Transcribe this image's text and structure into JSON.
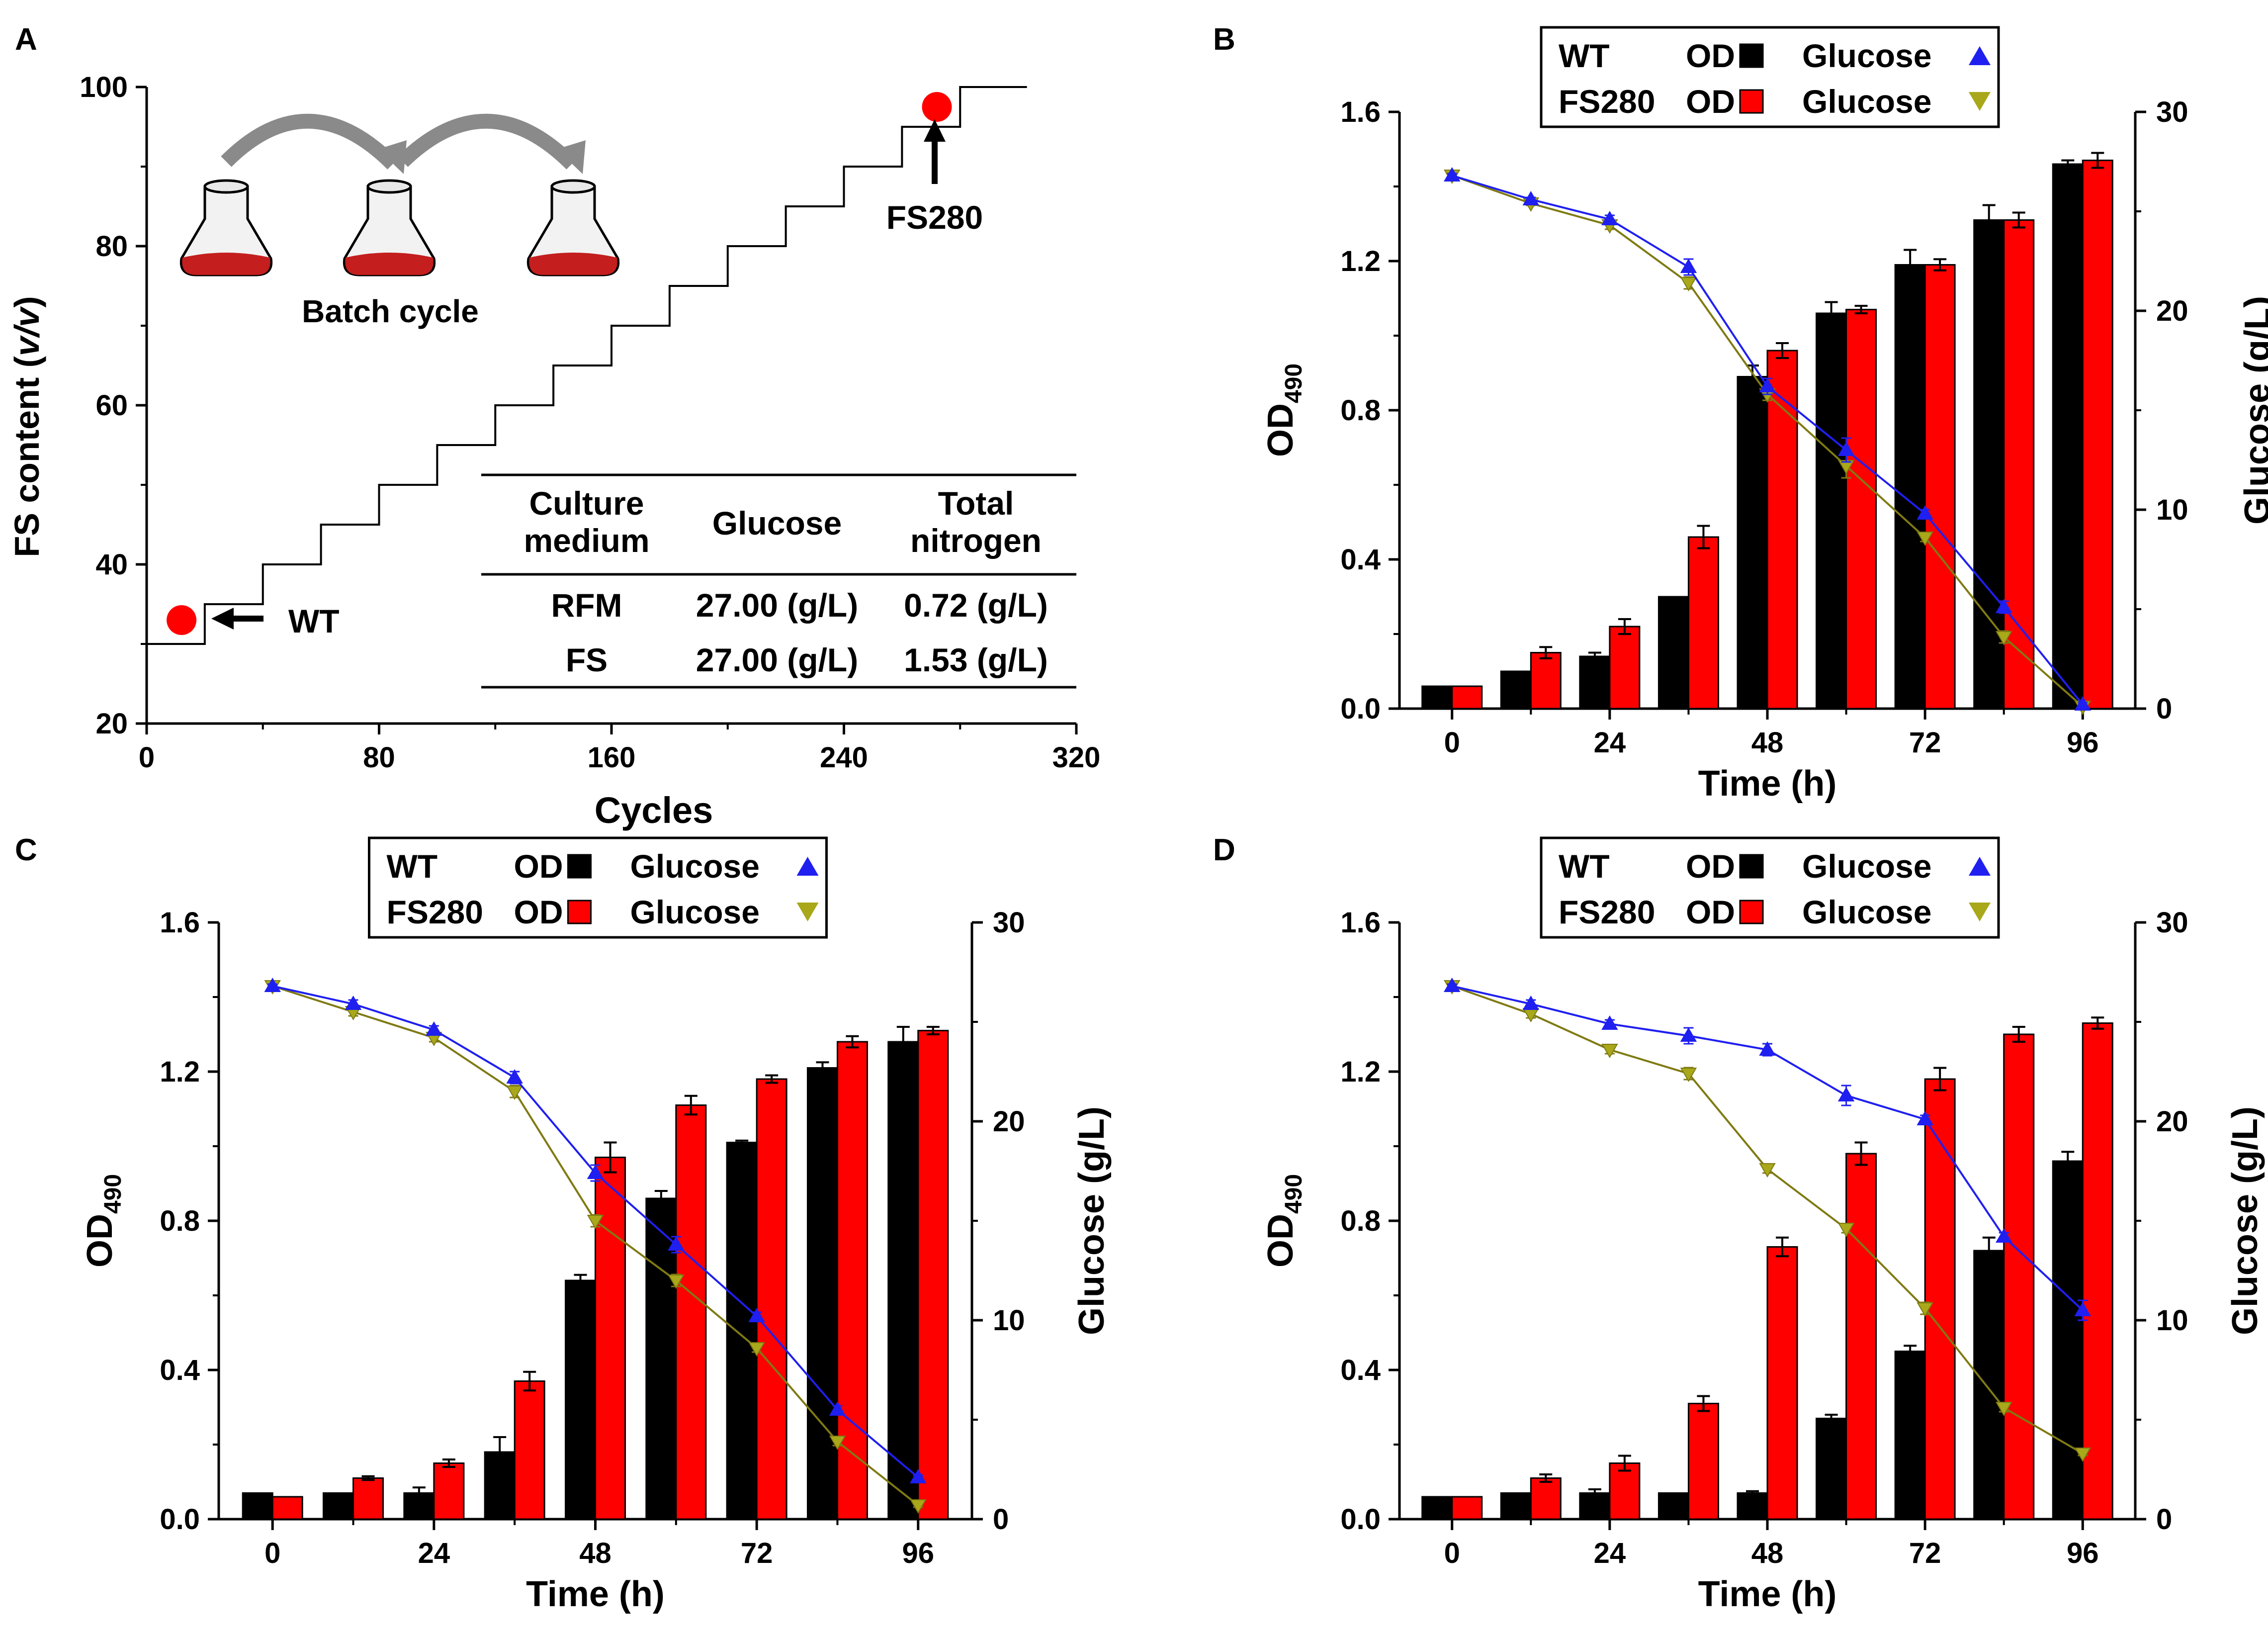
{
  "colors": {
    "axis": "#000000",
    "wt_bar": "#000000",
    "fs_bar": "#ff0000",
    "wt_glucose": "#1f1ff0",
    "fs_glucose": "#7f7a12",
    "fs_glucose_marker": "#a8a81a",
    "dot": "#ff0000",
    "flask_liquid": "#c41e1e",
    "arrow_gray": "#8a8a8a"
  },
  "panels": {
    "A": {
      "letter": "A",
      "ylabel_main": "FS content (",
      "ylabel_italic": "v/v",
      "ylabel_close": ")",
      "xlabel": "Cycles",
      "batch_label": "Batch cycle",
      "wt_label": "WT",
      "fs280_label": "FS280",
      "table": {
        "headers": [
          [
            "Culture",
            "medium"
          ],
          [
            "Glucose"
          ],
          [
            "Total",
            "nitrogen"
          ]
        ],
        "rows": [
          [
            "RFM",
            "27.00 (g/L)",
            "0.72 (g/L)"
          ],
          [
            "FS",
            "27.00 (g/L)",
            "1.53 (g/L)"
          ]
        ]
      }
    },
    "B": {
      "letter": "B"
    },
    "C": {
      "letter": "C"
    },
    "D": {
      "letter": "D"
    }
  },
  "legend": {
    "row1_strain": "WT",
    "row2_strain": "FS280",
    "od_label": "OD",
    "glucose_label": "Glucose"
  },
  "common_labels": {
    "od_main": "OD",
    "od_sub": "490",
    "glucose_axis": "Glucose (g/L)",
    "time_axis": "Time (h)"
  },
  "chart_data": [
    {
      "panel": "A",
      "type": "line",
      "title": "",
      "xlabel": "Cycles",
      "ylabel": "FS content (v/v)",
      "xlim": [
        0,
        320
      ],
      "ylim": [
        20,
        100
      ],
      "xticks": [
        0,
        80,
        160,
        240,
        320
      ],
      "yticks": [
        20,
        40,
        60,
        80,
        100
      ],
      "series": [
        {
          "name": "FS content staircase",
          "x": [
            0,
            20,
            20,
            40,
            40,
            60,
            60,
            80,
            80,
            100,
            100,
            120,
            120,
            140,
            140,
            160,
            160,
            180,
            180,
            200,
            200,
            220,
            220,
            240,
            240,
            260,
            260,
            280,
            280,
            303
          ],
          "y": [
            30,
            30,
            35,
            35,
            40,
            40,
            45,
            45,
            50,
            50,
            55,
            55,
            60,
            60,
            65,
            65,
            70,
            70,
            75,
            75,
            80,
            80,
            85,
            85,
            90,
            90,
            95,
            95,
            100,
            100
          ]
        }
      ],
      "markers": [
        {
          "label": "WT",
          "x": 12,
          "y": 33
        },
        {
          "label": "FS280",
          "x": 272,
          "y": 97.5
        }
      ]
    },
    {
      "panel": "B",
      "type": "bar",
      "xlabel": "Time (h)",
      "ylabel": "OD490",
      "ylabel_right": "Glucose (g/L)",
      "x": [
        0,
        12,
        24,
        36,
        48,
        60,
        72,
        84,
        96
      ],
      "xticks": [
        0,
        24,
        48,
        72,
        96
      ],
      "xlim": [
        -8,
        104
      ],
      "ylim": [
        0,
        1.6
      ],
      "ylim_right": [
        0,
        30
      ],
      "yticks": [
        0.0,
        0.4,
        0.8,
        1.2,
        1.6
      ],
      "yticks_right": [
        0,
        10,
        20,
        30
      ],
      "series": [
        {
          "name": "WT OD",
          "axis": "left",
          "values": [
            0.06,
            0.1,
            0.14,
            0.3,
            0.89,
            1.06,
            1.19,
            1.31,
            1.46
          ],
          "errors": [
            0.0,
            0.0,
            0.01,
            0.0,
            0.03,
            0.03,
            0.04,
            0.04,
            0.01
          ]
        },
        {
          "name": "FS280 OD",
          "axis": "left",
          "values": [
            0.06,
            0.15,
            0.22,
            0.46,
            0.96,
            1.07,
            1.19,
            1.31,
            1.47
          ],
          "errors": [
            0.0,
            0.015,
            0.02,
            0.03,
            0.02,
            0.01,
            0.015,
            0.02,
            0.02
          ]
        },
        {
          "name": "WT Glucose",
          "axis": "right",
          "values": [
            26.8,
            25.6,
            24.6,
            22.2,
            16.2,
            13.0,
            9.8,
            5.1,
            0.2
          ],
          "errors": [
            0.1,
            0.1,
            0.2,
            0.4,
            0.4,
            0.6,
            0.2,
            0.3,
            0.1
          ]
        },
        {
          "name": "FS280 Glucose",
          "axis": "right",
          "values": [
            26.8,
            25.4,
            24.3,
            21.4,
            15.8,
            12.2,
            8.6,
            3.6,
            0.1
          ],
          "errors": [
            0.1,
            0.1,
            0.2,
            0.3,
            0.3,
            0.6,
            0.2,
            0.3,
            0.1
          ]
        }
      ]
    },
    {
      "panel": "C",
      "type": "bar",
      "xlabel": "Time (h)",
      "ylabel": "OD490",
      "ylabel_right": "Glucose (g/L)",
      "x": [
        0,
        12,
        24,
        36,
        48,
        60,
        72,
        84,
        96
      ],
      "xticks": [
        0,
        24,
        48,
        72,
        96
      ],
      "xlim": [
        -8,
        104
      ],
      "ylim": [
        0,
        1.6
      ],
      "ylim_right": [
        0,
        30
      ],
      "yticks": [
        0.0,
        0.4,
        0.8,
        1.2,
        1.6
      ],
      "yticks_right": [
        0,
        10,
        20,
        30
      ],
      "series": [
        {
          "name": "WT OD",
          "axis": "left",
          "values": [
            0.07,
            0.07,
            0.07,
            0.18,
            0.64,
            0.86,
            1.01,
            1.21,
            1.28
          ],
          "errors": [
            0.0,
            0.0,
            0.015,
            0.04,
            0.015,
            0.02,
            0.005,
            0.015,
            0.04
          ]
        },
        {
          "name": "FS280 OD",
          "axis": "left",
          "values": [
            0.06,
            0.11,
            0.15,
            0.37,
            0.97,
            1.11,
            1.18,
            1.28,
            1.31
          ],
          "errors": [
            0.0,
            0.005,
            0.01,
            0.025,
            0.04,
            0.025,
            0.01,
            0.015,
            0.01
          ]
        },
        {
          "name": "WT Glucose",
          "axis": "right",
          "values": [
            26.8,
            25.9,
            24.6,
            22.2,
            17.4,
            13.8,
            10.2,
            5.5,
            2.1
          ],
          "errors": [
            0.1,
            0.2,
            0.2,
            0.3,
            0.4,
            0.4,
            0.2,
            0.2,
            0.1
          ]
        },
        {
          "name": "FS280 Glucose",
          "axis": "right",
          "values": [
            26.8,
            25.5,
            24.2,
            21.5,
            15.0,
            12.0,
            8.6,
            3.9,
            0.7
          ],
          "errors": [
            0.1,
            0.2,
            0.2,
            0.3,
            0.3,
            0.3,
            0.2,
            0.2,
            0.1
          ]
        }
      ]
    },
    {
      "panel": "D",
      "type": "bar",
      "xlabel": "Time (h)",
      "ylabel": "OD490",
      "ylabel_right": "Glucose (g/L)",
      "x": [
        0,
        12,
        24,
        36,
        48,
        60,
        72,
        84,
        96
      ],
      "xticks": [
        0,
        24,
        48,
        72,
        96
      ],
      "xlim": [
        -8,
        104
      ],
      "ylim": [
        0,
        1.6
      ],
      "ylim_right": [
        0,
        30
      ],
      "yticks": [
        0.0,
        0.4,
        0.8,
        1.2,
        1.6
      ],
      "yticks_right": [
        0,
        10,
        20,
        30
      ],
      "series": [
        {
          "name": "WT OD",
          "axis": "left",
          "values": [
            0.06,
            0.07,
            0.07,
            0.07,
            0.07,
            0.27,
            0.45,
            0.72,
            0.96
          ],
          "errors": [
            0.0,
            0.0,
            0.01,
            0.0,
            0.005,
            0.01,
            0.015,
            0.035,
            0.025
          ]
        },
        {
          "name": "FS280 OD",
          "axis": "left",
          "values": [
            0.06,
            0.11,
            0.15,
            0.31,
            0.73,
            0.98,
            1.18,
            1.3,
            1.33
          ],
          "errors": [
            0.0,
            0.01,
            0.02,
            0.02,
            0.025,
            0.03,
            0.03,
            0.02,
            0.015
          ]
        },
        {
          "name": "WT Glucose",
          "axis": "right",
          "values": [
            26.8,
            25.9,
            24.9,
            24.3,
            23.6,
            21.3,
            20.1,
            14.2,
            10.5
          ],
          "errors": [
            0.1,
            0.2,
            0.2,
            0.4,
            0.3,
            0.5,
            0.2,
            0.2,
            0.5
          ]
        },
        {
          "name": "FS280 Glucose",
          "axis": "right",
          "values": [
            26.8,
            25.4,
            23.6,
            22.4,
            17.6,
            14.6,
            10.6,
            5.6,
            3.3
          ],
          "errors": [
            0.1,
            0.2,
            0.2,
            0.3,
            0.2,
            0.2,
            0.3,
            0.2,
            0.1
          ]
        }
      ]
    }
  ]
}
